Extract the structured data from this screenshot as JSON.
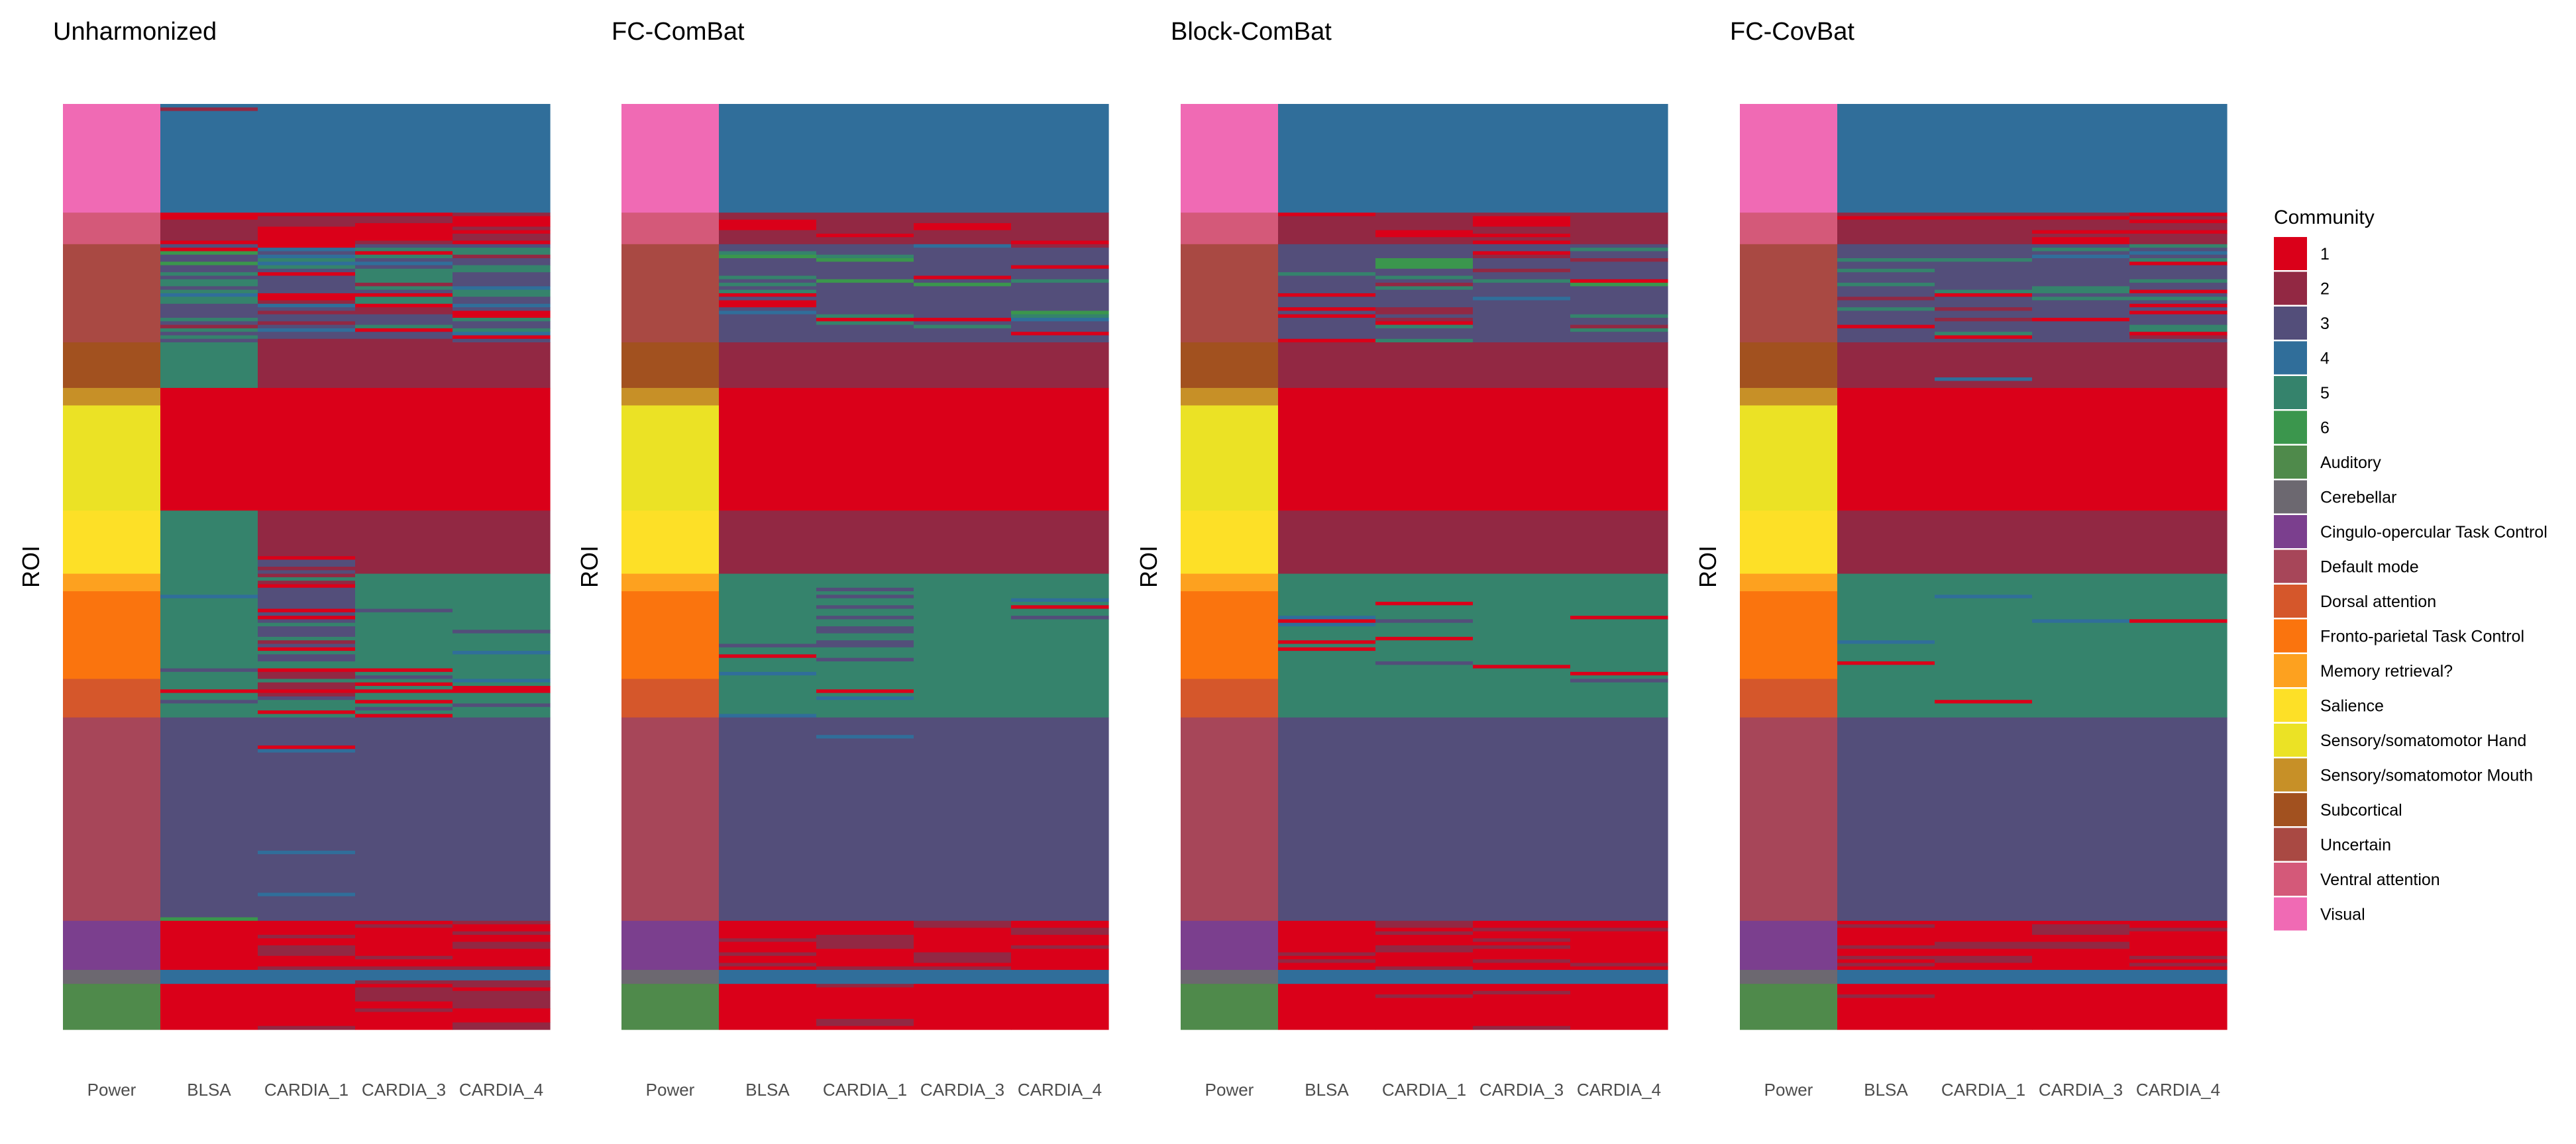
{
  "chart_data": {
    "type": "heatmap",
    "ylabel": "ROI",
    "columns": [
      "Power",
      "BLSA",
      "CARDIA_1",
      "CARDIA_3",
      "CARDIA_4"
    ],
    "row_count": 264,
    "panels": [
      {
        "title": "Unharmonized",
        "variant": "unharmonized"
      },
      {
        "title": "FC-ComBat",
        "variant": "fc_combat"
      },
      {
        "title": "Block-ComBat",
        "variant": "block_combat"
      },
      {
        "title": "FC-CovBat",
        "variant": "fc_covbat"
      }
    ],
    "power_partition": [
      {
        "network": "Visual",
        "rows": [
          0,
          31
        ]
      },
      {
        "network": "Ventral attention",
        "rows": [
          31,
          40
        ]
      },
      {
        "network": "Uncertain",
        "rows": [
          40,
          68
        ]
      },
      {
        "network": "Subcortical",
        "rows": [
          68,
          81
        ]
      },
      {
        "network": "Sensory/somatomotor Mouth",
        "rows": [
          81,
          86
        ]
      },
      {
        "network": "Sensory/somatomotor Hand",
        "rows": [
          86,
          116
        ]
      },
      {
        "network": "Salience",
        "rows": [
          116,
          134
        ]
      },
      {
        "network": "Memory retrieval?",
        "rows": [
          134,
          139
        ]
      },
      {
        "network": "Fronto-parietal Task Control",
        "rows": [
          139,
          164
        ]
      },
      {
        "network": "Dorsal attention",
        "rows": [
          164,
          175
        ]
      },
      {
        "network": "Default mode",
        "rows": [
          175,
          233
        ]
      },
      {
        "network": "Cingulo-opercular Task Control",
        "rows": [
          233,
          247
        ]
      },
      {
        "network": "Cerebellar",
        "rows": [
          247,
          251
        ]
      },
      {
        "network": "Auditory",
        "rows": [
          251,
          264
        ]
      }
    ],
    "community_by_block": {
      "Visual": "4",
      "Ventral attention": "2",
      "Uncertain": "3",
      "Subcortical": "2",
      "Sensory/somatomotor Mouth": "1",
      "Sensory/somatomotor Hand": "1",
      "Salience": "2",
      "Memory retrieval?": "5",
      "Fronto-parietal Task Control": "5",
      "Dorsal attention": "5",
      "Default mode": "3",
      "Cingulo-opercular Task Control": "1",
      "Cerebellar": "4",
      "Auditory": "1"
    },
    "legend": {
      "title": "Community",
      "position": "right",
      "items": [
        {
          "label": "1",
          "color": "#DA0019"
        },
        {
          "label": "2",
          "color": "#922843"
        },
        {
          "label": "3",
          "color": "#534E7A"
        },
        {
          "label": "4",
          "color": "#306E9A"
        },
        {
          "label": "5",
          "color": "#35836C"
        },
        {
          "label": "6",
          "color": "#3B964D"
        },
        {
          "label": "Auditory",
          "color": "#4F8A4B"
        },
        {
          "label": "Cerebellar",
          "color": "#6C6870"
        },
        {
          "label": "Cingulo-opercular Task Control",
          "color": "#7B3F8E"
        },
        {
          "label": "Default mode",
          "color": "#A74659"
        },
        {
          "label": "Dorsal attention",
          "color": "#D5572B"
        },
        {
          "label": "Fronto-parietal Task Control",
          "color": "#FA740E"
        },
        {
          "label": "Memory retrieval?",
          "color": "#FDA11F"
        },
        {
          "label": "Salience",
          "color": "#FDE027"
        },
        {
          "label": "Sensory/somatomotor Hand",
          "color": "#EBE225"
        },
        {
          "label": "Sensory/somatomotor Mouth",
          "color": "#C79027"
        },
        {
          "label": "Subcortical",
          "color": "#A2511F"
        },
        {
          "label": "Uncertain",
          "color": "#A94943"
        },
        {
          "label": "Ventral attention",
          "color": "#D45979"
        },
        {
          "label": "Visual",
          "color": "#F06AB4"
        }
      ]
    }
  }
}
